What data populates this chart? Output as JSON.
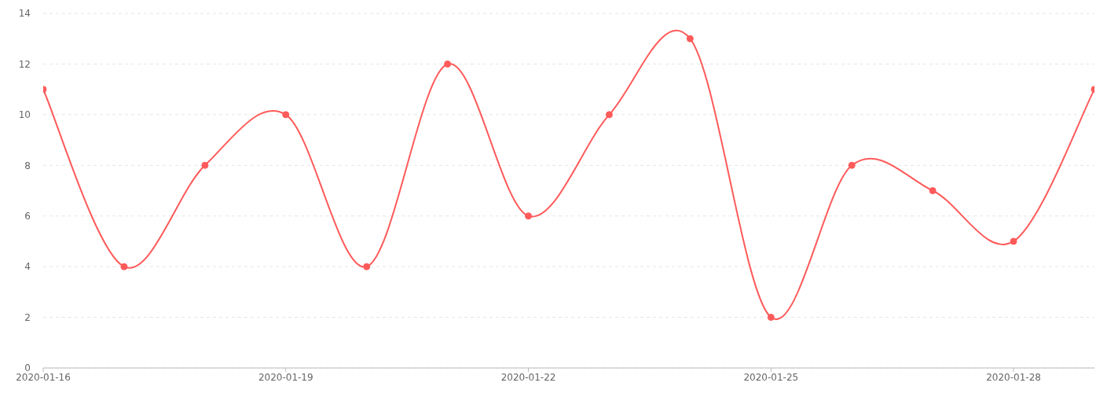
{
  "chart_data": {
    "type": "line",
    "x": [
      "2020-01-16",
      "2020-01-17",
      "2020-01-18",
      "2020-01-19",
      "2020-01-20",
      "2020-01-21",
      "2020-01-22",
      "2020-01-23",
      "2020-01-24",
      "2020-01-25",
      "2020-01-26",
      "2020-01-27",
      "2020-01-28",
      "2020-01-29"
    ],
    "series": [
      {
        "color": "#ff5a5a",
        "values": [
          11,
          4,
          8,
          10,
          4,
          12,
          6,
          10,
          13,
          2,
          8,
          7,
          5,
          11
        ]
      }
    ],
    "xlim": [
      "2020-01-16",
      "2020-01-29"
    ],
    "xticks": [
      "2020-01-16",
      "2020-01-19",
      "2020-01-22",
      "2020-01-25",
      "2020-01-28"
    ],
    "ylim": [
      0,
      14
    ],
    "yticks": [
      0,
      2,
      4,
      6,
      8,
      10,
      12,
      14
    ],
    "grid": "y",
    "marker": "circle",
    "line_style": "solid"
  }
}
